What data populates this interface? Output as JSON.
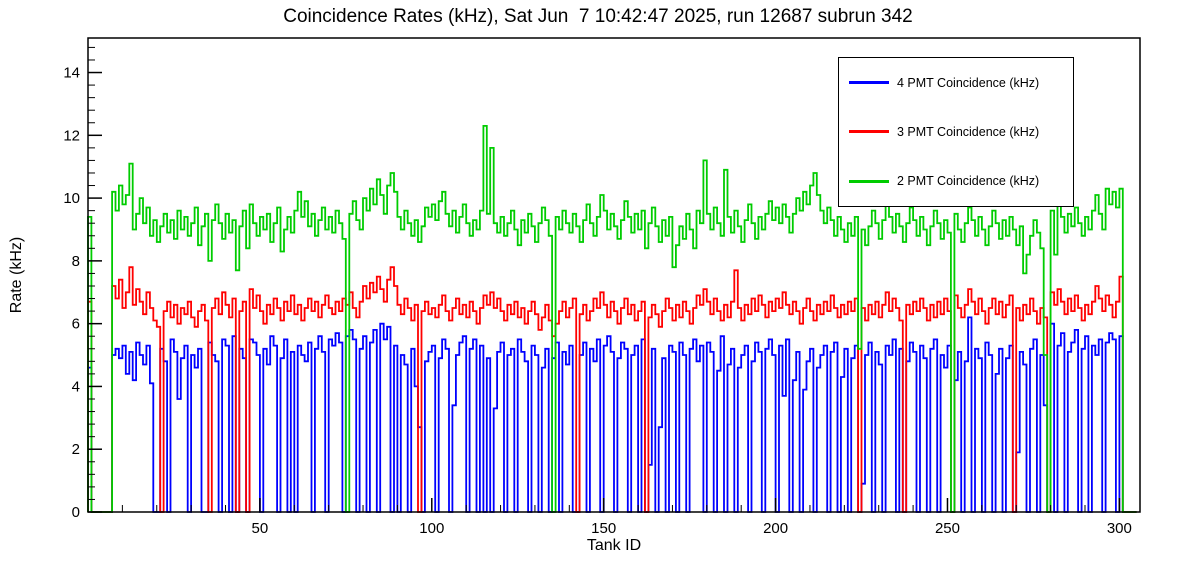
{
  "chart_data": {
    "type": "line",
    "style": "step-histogram",
    "title": "Coincidence Rates (kHz), Sat Jun  7 10:42:47 2025, run 12687 subrun 342",
    "xlabel": "Tank ID",
    "ylabel": "Rate (kHz)",
    "xlim": [
      0,
      306
    ],
    "ylim": [
      0,
      15.1
    ],
    "xticks": [
      50,
      100,
      150,
      200,
      250,
      300
    ],
    "yticks": [
      0,
      2,
      4,
      6,
      8,
      10,
      12,
      14
    ],
    "grid": false,
    "legend_position": "top-right",
    "x_bin_start": 1,
    "series": [
      {
        "name": "4 PMT Coincidence (kHz)",
        "color": "#0000ff",
        "values": [
          4.6,
          0,
          0,
          0,
          0,
          0,
          0,
          5.0,
          5.2,
          4.9,
          5.3,
          4.4,
          5.1,
          4.2,
          5.4,
          5.0,
          4.7,
          5.3,
          4.1,
          0,
          0,
          5.2,
          4.8,
          0,
          5.5,
          5.1,
          3.6,
          4.9,
          5.3,
          0,
          5.0,
          4.6,
          5.2,
          0,
          0,
          5.4,
          5.0,
          4.8,
          0,
          5.5,
          5.3,
          0,
          5.6,
          0,
          5.2,
          4.9,
          0,
          5.5,
          5.4,
          5.0,
          0,
          5.2,
          4.7,
          5.6,
          5.3,
          0,
          4.9,
          5.5,
          0,
          5.1,
          0,
          5.3,
          5.0,
          4.8,
          5.4,
          0,
          5.2,
          5.6,
          5.1,
          0,
          5.5,
          5.3,
          5.7,
          5.4,
          0,
          5.6,
          5.8,
          5.5,
          0,
          5.2,
          5.6,
          0,
          5.4,
          5.8,
          0,
          6.0,
          5.5,
          5.9,
          0,
          5.3,
          0,
          5.0,
          4.7,
          0,
          5.2,
          4.0,
          2.7,
          0,
          4.8,
          5.1,
          5.3,
          0,
          4.9,
          5.5,
          5.2,
          0,
          3.4,
          5.0,
          5.4,
          5.6,
          0,
          5.2,
          5.5,
          0,
          5.3,
          0,
          4.9,
          0,
          3.3,
          5.1,
          5.4,
          0,
          5.0,
          5.2,
          0,
          5.5,
          5.1,
          4.8,
          0,
          5.3,
          5.0,
          0,
          4.6,
          5.2,
          0,
          4.9,
          5.4,
          0,
          5.1,
          4.7,
          5.3,
          0,
          0,
          5.0,
          5.4,
          0,
          5.2,
          4.8,
          5.5,
          0,
          5.3,
          5.6,
          5.1,
          0,
          4.9,
          5.4,
          5.2,
          0,
          5.0,
          5.3,
          0,
          5.5,
          0,
          1.5,
          5.2,
          0,
          2.7,
          4.9,
          0,
          5.3,
          5.1,
          0,
          5.4,
          5.0,
          0,
          5.2,
          5.5,
          4.8,
          5.3,
          0,
          5.4,
          5.1,
          0,
          4.5,
          5.6,
          0,
          4.7,
          5.2,
          0,
          4.6,
          5.0,
          5.3,
          0,
          4.8,
          5.4,
          5.1,
          0,
          5.2,
          5.5,
          5.0,
          0,
          5.3,
          3.7,
          5.5,
          0,
          4.2,
          5.1,
          0,
          3.9,
          4.8,
          5.2,
          0,
          4.6,
          5.0,
          5.3,
          0,
          5.1,
          5.4,
          0,
          4.3,
          5.2,
          0,
          4.9,
          5.3,
          0,
          0.9,
          5.0,
          5.4,
          0,
          5.1,
          4.7,
          0,
          5.3,
          5.0,
          5.5,
          0,
          5.2,
          0,
          4.8,
          5.4,
          5.1,
          0,
          5.3,
          4.9,
          0,
          5.2,
          5.5,
          0,
          5.0,
          4.6,
          5.3,
          0,
          4.2,
          5.1,
          0,
          4.8,
          6.2,
          0,
          5.2,
          4.9,
          0,
          5.4,
          5.0,
          0,
          4.4,
          5.2,
          0,
          4.9,
          5.3,
          0,
          1.9,
          5.1,
          4.7,
          0,
          5.2,
          5.5,
          0,
          5.0,
          3.4,
          0,
          6.0,
          0,
          5.3,
          5.7,
          0,
          5.1,
          5.4,
          5.8,
          0,
          5.2,
          5.6,
          0,
          5.3,
          5.0,
          5.5,
          0,
          5.4,
          5.7,
          5.5,
          0,
          5.6,
          0,
          0,
          0,
          0
        ]
      },
      {
        "name": "3 PMT Coincidence (kHz)",
        "color": "#ff0000",
        "values": [
          6.7,
          0,
          0,
          0,
          0,
          0,
          0,
          7.2,
          6.8,
          7.4,
          6.5,
          7.0,
          7.8,
          6.6,
          7.1,
          6.7,
          6.3,
          7.0,
          6.5,
          6.1,
          5.9,
          0,
          6.4,
          6.7,
          6.2,
          6.6,
          6.0,
          6.5,
          6.3,
          6.7,
          6.2,
          5.9,
          6.4,
          6.6,
          6.1,
          0,
          6.5,
          6.8,
          6.3,
          7.0,
          6.6,
          6.2,
          6.8,
          0,
          6.4,
          6.7,
          0,
          7.1,
          6.5,
          6.9,
          6.4,
          6.0,
          6.6,
          6.3,
          6.8,
          6.5,
          6.1,
          6.7,
          6.4,
          6.9,
          6.3,
          6.6,
          6.1,
          6.5,
          6.8,
          6.4,
          6.7,
          6.2,
          6.6,
          6.9,
          6.5,
          6.3,
          6.7,
          6.4,
          6.8,
          6.6,
          7.0,
          6.5,
          6.2,
          6.7,
          7.2,
          6.8,
          7.3,
          7.0,
          7.5,
          7.1,
          6.7,
          7.4,
          7.8,
          7.2,
          6.6,
          6.3,
          6.8,
          6.5,
          6.1,
          6.6,
          0,
          6.4,
          6.7,
          6.3,
          6.5,
          6.2,
          6.6,
          6.9,
          6.4,
          6.1,
          6.5,
          6.8,
          6.3,
          6.6,
          6.2,
          6.7,
          6.4,
          6.0,
          6.5,
          6.9,
          6.6,
          7.0,
          6.5,
          6.8,
          6.4,
          6.1,
          6.6,
          6.3,
          6.7,
          6.2,
          6.5,
          6.0,
          6.4,
          6.7,
          6.3,
          5.8,
          6.2,
          6.6,
          6.1,
          5.6,
          6.0,
          6.4,
          6.7,
          6.2,
          6.5,
          6.8,
          0,
          6.3,
          6.6,
          6.1,
          6.4,
          6.8,
          6.5,
          7.0,
          6.6,
          6.2,
          6.7,
          6.4,
          6.0,
          6.5,
          6.8,
          6.3,
          6.6,
          6.1,
          6.4,
          6.7,
          0,
          6.2,
          6.6,
          6.3,
          5.9,
          6.4,
          6.8,
          6.5,
          6.1,
          6.6,
          6.2,
          6.7,
          6.4,
          6.0,
          6.5,
          6.9,
          6.6,
          7.1,
          6.7,
          6.3,
          6.8,
          6.4,
          6.1,
          6.6,
          6.2,
          6.7,
          7.7,
          6.5,
          6.1,
          6.6,
          6.3,
          6.8,
          6.4,
          6.9,
          6.6,
          6.2,
          6.7,
          6.4,
          6.8,
          6.5,
          7.0,
          6.6,
          6.3,
          6.7,
          6.4,
          6.0,
          6.5,
          6.8,
          6.4,
          6.1,
          6.6,
          6.3,
          6.7,
          6.4,
          6.9,
          6.5,
          6.2,
          6.6,
          6.3,
          6.7,
          6.4,
          6.8,
          0,
          6.5,
          6.1,
          6.6,
          6.3,
          6.7,
          6.2,
          6.6,
          7.0,
          6.4,
          6.8,
          6.5,
          6.1,
          0,
          6.6,
          6.3,
          6.7,
          6.4,
          6.8,
          6.5,
          6.1,
          6.6,
          6.2,
          6.7,
          6.3,
          6.8,
          6.4,
          0,
          6.9,
          6.5,
          6.2,
          6.6,
          7.1,
          6.7,
          6.3,
          6.8,
          6.4,
          6.0,
          6.5,
          6.8,
          6.3,
          6.7,
          6.2,
          6.6,
          6.9,
          0,
          6.5,
          6.1,
          6.6,
          6.3,
          6.8,
          6.4,
          6.0,
          6.5,
          6.2,
          0,
          7.0,
          6.6,
          7.1,
          6.7,
          6.3,
          6.8,
          6.4,
          6.9,
          6.5,
          6.1,
          6.6,
          6.3,
          6.7,
          7.2,
          6.8,
          6.4,
          6.9,
          6.6,
          6.2,
          6.7,
          7.5,
          0,
          0,
          0,
          0
        ]
      },
      {
        "name": "2 PMT Coincidence (kHz)",
        "color": "#00cc00",
        "values": [
          9.4,
          0,
          0,
          0,
          0,
          0,
          0,
          10.2,
          9.6,
          10.4,
          9.8,
          10.1,
          11.1,
          9.0,
          9.5,
          10.0,
          9.2,
          9.7,
          8.8,
          9.3,
          8.6,
          9.1,
          9.5,
          8.9,
          9.3,
          8.7,
          9.6,
          9.0,
          9.4,
          8.8,
          9.2,
          9.7,
          8.5,
          9.1,
          9.5,
          8.0,
          9.3,
          9.8,
          9.2,
          8.7,
          9.5,
          8.9,
          9.3,
          7.7,
          9.1,
          9.6,
          8.4,
          9.8,
          9.2,
          8.8,
          9.4,
          9.0,
          9.5,
          8.6,
          9.2,
          9.7,
          8.3,
          9.0,
          9.4,
          8.9,
          9.6,
          10.2,
          9.4,
          9.9,
          9.1,
          9.5,
          8.8,
          9.3,
          9.7,
          9.0,
          9.4,
          8.9,
          9.6,
          9.2,
          8.7,
          0,
          9.5,
          9.9,
          9.3,
          9.0,
          10.0,
          9.6,
          10.3,
          9.8,
          10.6,
          10.1,
          9.5,
          10.4,
          10.8,
          10.2,
          9.4,
          9.0,
          9.6,
          9.2,
          8.8,
          9.3,
          8.6,
          9.1,
          9.7,
          9.4,
          9.8,
          9.3,
          9.9,
          10.2,
          9.5,
          9.1,
          9.6,
          8.9,
          9.4,
          9.8,
          9.2,
          8.8,
          9.3,
          9.0,
          9.6,
          12.3,
          9.5,
          11.6,
          9.2,
          8.9,
          9.4,
          8.8,
          9.2,
          9.6,
          9.0,
          8.5,
          9.3,
          8.9,
          9.5,
          9.1,
          8.6,
          9.2,
          9.7,
          9.3,
          8.8,
          0,
          9.4,
          9.0,
          9.6,
          9.2,
          8.9,
          9.5,
          9.1,
          8.6,
          9.3,
          9.8,
          9.2,
          8.8,
          9.4,
          10.1,
          9.6,
          9.0,
          9.5,
          9.1,
          8.7,
          9.3,
          9.9,
          9.4,
          8.9,
          9.5,
          9.0,
          9.6,
          8.4,
          9.2,
          9.7,
          9.1,
          8.6,
          9.3,
          8.8,
          9.4,
          7.8,
          8.5,
          9.1,
          8.7,
          9.5,
          9.0,
          8.4,
          9.6,
          9.2,
          11.2,
          9.5,
          9.0,
          9.7,
          9.2,
          8.8,
          10.9,
          9.4,
          8.9,
          9.6,
          9.1,
          8.6,
          9.3,
          9.8,
          9.2,
          8.7,
          9.4,
          9.0,
          9.5,
          9.9,
          9.3,
          9.7,
          9.2,
          9.8,
          9.4,
          8.9,
          9.5,
          10.0,
          9.6,
          10.2,
          9.8,
          10.4,
          10.8,
          10.1,
          9.6,
          9.2,
          9.7,
          9.3,
          8.8,
          9.4,
          9.0,
          8.6,
          9.2,
          8.8,
          9.4,
          5.2,
          9.0,
          8.5,
          9.1,
          9.6,
          9.2,
          8.7,
          9.3,
          9.8,
          9.4,
          8.9,
          9.5,
          9.1,
          8.6,
          9.2,
          9.7,
          9.3,
          8.8,
          9.4,
          9.0,
          8.5,
          9.1,
          9.6,
          9.2,
          8.7,
          9.3,
          8.9,
          0,
          9.5,
          9.0,
          8.6,
          9.2,
          9.7,
          9.3,
          8.8,
          9.4,
          9.0,
          8.5,
          9.1,
          9.6,
          9.2,
          8.7,
          9.3,
          8.8,
          9.4,
          9.0,
          8.5,
          9.1,
          7.6,
          8.2,
          8.8,
          9.3,
          8.9,
          8.4,
          5.0,
          0,
          9.6,
          8.2,
          9.9,
          9.4,
          8.9,
          9.5,
          9.1,
          9.7,
          9.2,
          8.8,
          9.4,
          9.0,
          9.6,
          10.1,
          9.5,
          9.0,
          10.3,
          9.8,
          10.2,
          9.7,
          10.3,
          0,
          0,
          0,
          0
        ]
      }
    ]
  }
}
